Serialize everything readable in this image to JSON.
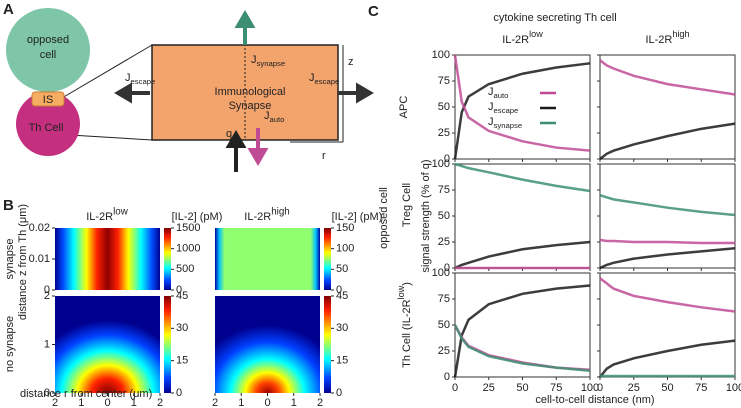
{
  "panel_a": {
    "label": "A",
    "cell_top": [
      "opposed",
      "cell"
    ],
    "synapse_label": "IS",
    "cell_bottom": "Th Cell",
    "box_title": [
      "Immunological",
      "Synapse"
    ],
    "fluxes": {
      "escape_left": {
        "main": "J",
        "sub": "escape"
      },
      "escape_right": {
        "main": "J",
        "sub": "escape"
      },
      "synapse": {
        "main": "J",
        "sub": "synapse"
      },
      "auto": {
        "main": "J",
        "sub": "auto"
      }
    },
    "q": "q",
    "z": "z",
    "r": "r"
  },
  "panel_b": {
    "label": "B",
    "columns": [
      {
        "title": {
          "main": "IL-2R",
          "sup": "low"
        },
        "unit": "[IL-2] (pM)",
        "top_lim": [
          0,
          1500
        ],
        "top_ticks": [
          0,
          500,
          1000,
          1500
        ],
        "bottom_lim": [
          0,
          45
        ],
        "bottom_ticks": [
          0,
          15,
          30,
          45
        ]
      },
      {
        "title": {
          "main": "IL-2R",
          "sup": "high"
        },
        "unit": "[IL-2] (pM)",
        "top_lim": [
          0,
          150
        ],
        "top_ticks": [
          0,
          50,
          100,
          150
        ],
        "bottom_lim": [
          0,
          45
        ],
        "bottom_ticks": [
          0,
          15,
          30,
          45
        ]
      }
    ],
    "rows": [
      "synapse",
      "no synapse"
    ],
    "ylabel": "distance z from Th (μm)",
    "xlabel": "distance r from center (μm)",
    "top_ylim": [
      0,
      0.02
    ],
    "top_yticks": [
      0,
      0.01,
      0.02
    ],
    "bottom_ylim": [
      0,
      2
    ],
    "bottom_yticks": [
      0,
      1,
      2
    ],
    "xlim": [
      -2,
      2
    ],
    "xticks": [
      {
        "value": -2,
        "label": "2"
      },
      {
        "value": -1,
        "label": "1"
      },
      0,
      1,
      2
    ]
  },
  "panel_c": {
    "label": "C",
    "title": "cytokine secreting Th cell",
    "columns": [
      {
        "main": "IL-2R",
        "sup": "low"
      },
      {
        "main": "IL-2R",
        "sup": "high"
      }
    ],
    "row_labels": [
      "APC",
      "Treg Cell",
      {
        "main": "Th Cell (IL-2R",
        "sup": "low",
        "tail": ")"
      }
    ],
    "group_label": "opposed cell",
    "ylabel": "signal strength (% of q)",
    "xlabel": "cell-to-cell distance (nm)",
    "x": [
      0,
      5,
      10,
      25,
      50,
      75,
      100
    ],
    "xlim": [
      0,
      100
    ],
    "ylim": [
      0,
      100
    ],
    "xticks": [
      0,
      25,
      50,
      75,
      100
    ],
    "yticks": [
      0,
      25,
      50,
      75,
      100
    ],
    "legend": [
      {
        "name": {
          "main": "J",
          "sub": "auto"
        },
        "color": "#c04b95"
      },
      {
        "name": {
          "main": "J",
          "sub": "escape"
        },
        "color": "#1a1a1a"
      },
      {
        "name": {
          "main": "J",
          "sub": "synapse"
        },
        "color": "#3d8f73"
      }
    ],
    "plots": [
      [
        {
          "series": [
            {
              "color": "#1a1a1a",
              "values": [
                0,
                45,
                60,
                72,
                82,
                88,
                92
              ]
            },
            {
              "color": "#c04b95",
              "values": [
                100,
                55,
                40,
                27,
                17,
                11,
                8
              ]
            }
          ]
        },
        {
          "series": [
            {
              "color": "#c04b95",
              "values": [
                95,
                90,
                87,
                80,
                72,
                67,
                62
              ]
            },
            {
              "color": "#1a1a1a",
              "values": [
                0,
                5,
                8,
                14,
                22,
                29,
                34
              ]
            }
          ]
        }
      ],
      [
        {
          "series": [
            {
              "color": "#3d8f73",
              "values": [
                100,
                98,
                96,
                92,
                85,
                79,
                74
              ]
            },
            {
              "color": "#1a1a1a",
              "values": [
                0,
                3,
                5,
                11,
                18,
                22,
                25
              ]
            },
            {
              "color": "#c04b95",
              "values": [
                0,
                0,
                0,
                0,
                0,
                0,
                0
              ]
            }
          ]
        },
        {
          "series": [
            {
              "color": "#3d8f73",
              "values": [
                70,
                68,
                66,
                63,
                58,
                54,
                51
              ]
            },
            {
              "color": "#c04b95",
              "values": [
                27,
                26,
                26,
                25,
                25,
                24,
                24
              ]
            },
            {
              "color": "#1a1a1a",
              "values": [
                0,
                3,
                5,
                9,
                13,
                16,
                19
              ]
            }
          ]
        }
      ],
      [
        {
          "series": [
            {
              "color": "#1a1a1a",
              "values": [
                0,
                40,
                55,
                70,
                80,
                85,
                88
              ]
            },
            {
              "color": "#c04b95",
              "values": [
                50,
                38,
                30,
                21,
                14,
                9,
                7
              ]
            },
            {
              "color": "#3d8f73",
              "values": [
                50,
                37,
                29,
                20,
                13,
                9,
                6
              ]
            }
          ]
        },
        {
          "series": [
            {
              "color": "#c04b95",
              "values": [
                95,
                90,
                85,
                78,
                72,
                67,
                63
              ]
            },
            {
              "color": "#1a1a1a",
              "values": [
                0,
                8,
                12,
                18,
                25,
                31,
                35
              ]
            },
            {
              "color": "#3d8f73",
              "values": [
                1,
                1,
                1,
                1,
                1,
                1,
                1
              ]
            }
          ]
        }
      ]
    ]
  }
}
